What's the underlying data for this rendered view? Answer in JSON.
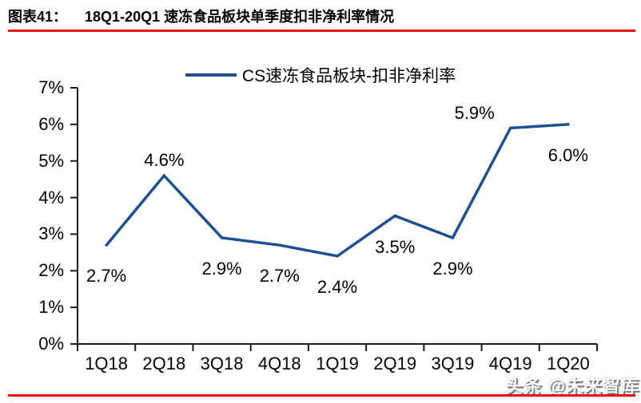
{
  "header": {
    "figure_label": "图表41：",
    "title": "18Q1-20Q1 速冻食品板块单季度扣非净利率情况"
  },
  "legend": {
    "label": "CS速冻食品板块-扣非净利率"
  },
  "watermark": {
    "text": "头条 @未来智库"
  },
  "colors": {
    "line": "#1e4f8f",
    "axis": "#1a1a1a",
    "rule": "#e8150d",
    "text": "#000000"
  },
  "chart_data": {
    "type": "line",
    "title": "18Q1-20Q1 速冻食品板块单季度扣非净利率情况",
    "categories": [
      "1Q18",
      "2Q18",
      "3Q18",
      "4Q18",
      "1Q19",
      "2Q19",
      "3Q19",
      "4Q19",
      "1Q20"
    ],
    "series": [
      {
        "name": "CS速冻食品板块-扣非净利率",
        "values": [
          2.7,
          4.6,
          2.9,
          2.7,
          2.4,
          3.5,
          2.9,
          5.9,
          6.0
        ]
      }
    ],
    "data_labels": [
      "2.7%",
      "4.6%",
      "2.9%",
      "2.7%",
      "2.4%",
      "3.5%",
      "2.9%",
      "5.9%",
      "6.0%"
    ],
    "label_positions": [
      "below",
      "above",
      "below",
      "below",
      "below",
      "below",
      "below",
      "above-left",
      "below"
    ],
    "ylabel_ticks": [
      "0%",
      "1%",
      "2%",
      "3%",
      "4%",
      "5%",
      "6%",
      "7%"
    ],
    "ylim": [
      0,
      7
    ],
    "y_tick_step": 1,
    "xlabel": "",
    "ylabel": "",
    "grid": false,
    "legend_position": "top-center"
  }
}
